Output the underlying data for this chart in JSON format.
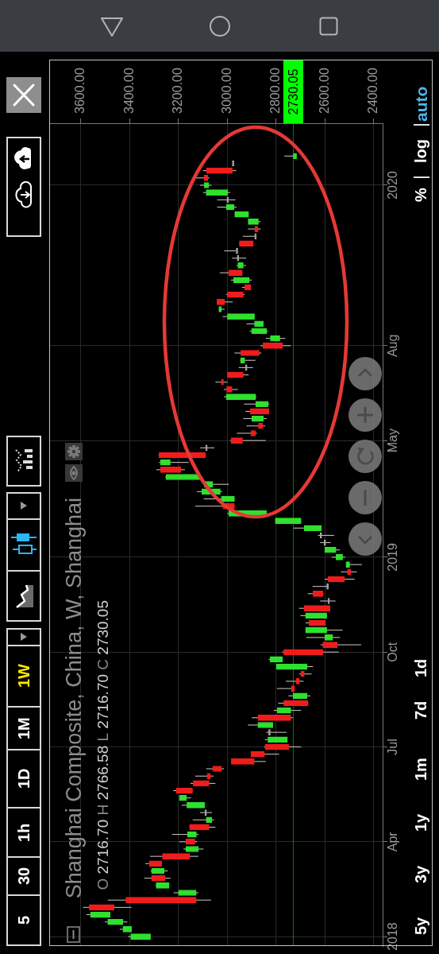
{
  "chart_data": {
    "type": "candlestick",
    "title": "Shanghai Composite, China, W, Shanghai",
    "subtitle": "O 2716.70 H 2766.58 L 2716.70 C 2730.05",
    "orientation": "horizontal",
    "categories": [
      null,
      null,
      null,
      null,
      "2020",
      null,
      null,
      null,
      null,
      null,
      null,
      null,
      null,
      null,
      null,
      null,
      null,
      null,
      null,
      null,
      null,
      null,
      null,
      null,
      null,
      null,
      "Aug",
      null,
      null,
      null,
      null,
      null,
      null,
      null,
      null,
      null,
      null,
      null,
      null,
      "May",
      null,
      null,
      null,
      null,
      null,
      null,
      null,
      null,
      null,
      null,
      null,
      null,
      null,
      null,
      null,
      "2019",
      null,
      null,
      null,
      null,
      null,
      null,
      null,
      null,
      null,
      null,
      null,
      null,
      "Oct",
      null,
      null,
      null,
      null,
      null,
      null,
      null,
      null,
      null,
      null,
      null,
      null,
      "Jul",
      null,
      null,
      null,
      null,
      null,
      null,
      null,
      null,
      null,
      null,
      null,
      null,
      "Apr",
      null,
      null,
      null,
      null,
      null,
      null,
      null,
      null,
      null,
      null,
      null,
      null,
      "2018"
    ],
    "ohlc": [
      [
        2716.7,
        2766.58,
        2716.7,
        2730.05
      ],
      [
        2980,
        2980,
        2980,
        2980
      ],
      [
        3086,
        3100,
        2964,
        2980
      ],
      [
        3095,
        3132,
        3074,
        3080
      ],
      [
        3076,
        3112,
        3065,
        3095
      ],
      [
        2999,
        3100,
        2989,
        3087
      ],
      [
        3002,
        3042,
        2967,
        3002
      ],
      [
        2973,
        3042,
        2963,
        3004
      ],
      [
        2913,
        2970,
        2913,
        2970
      ],
      [
        2873,
        2915,
        2864,
        2915
      ],
      [
        2888,
        2916,
        2864,
        2875
      ],
      [
        2888,
        2937,
        2881,
        2888
      ],
      [
        2951,
        2951,
        2894,
        2894
      ],
      [
        2964,
        3013,
        2964,
        2964
      ],
      [
        2960,
        2981,
        2923,
        2960
      ],
      [
        2935,
        2962,
        2924,
        2957
      ],
      [
        2994,
        3031,
        2939,
        2939
      ],
      [
        2910,
        2986,
        2900,
        2975
      ],
      [
        2929,
        2940,
        2904,
        2904
      ],
      [
        3000,
        3005,
        2929,
        2935
      ],
      [
        3043,
        3043,
        2978,
        3011
      ],
      [
        3024,
        3035,
        3011,
        3035
      ],
      [
        2889,
        3019,
        2889,
        3000
      ],
      [
        2853,
        2922,
        2853,
        2889
      ],
      [
        2839,
        2908,
        2835,
        2901
      ],
      [
        2785,
        2843,
        2763,
        2824
      ],
      [
        2854,
        2865,
        2740,
        2774
      ],
      [
        2945,
        2971,
        2861,
        2870
      ],
      [
        2929,
        2948,
        2885,
        2946
      ],
      [
        2926,
        2954,
        2895,
        2926
      ],
      [
        3000,
        3000,
        2913,
        2935
      ],
      [
        3025,
        3049,
        3000,
        3016
      ],
      [
        3003,
        3014,
        2957,
        2981
      ],
      [
        2884,
        3014,
        2881,
        3005
      ],
      [
        2833,
        2932,
        2828,
        2884
      ],
      [
        2906,
        2926,
        2830,
        2830
      ],
      [
        2853,
        2935,
        2839,
        2900
      ],
      [
        2873,
        2922,
        2845,
        2856
      ],
      [
        2904,
        2961,
        2879,
        2885
      ],
      [
        2985,
        2989,
        2843,
        2938
      ],
      [
        3089,
        3111,
        3053,
        3089
      ],
      [
        3280,
        3282,
        3089,
        3089
      ],
      [
        3234,
        3280,
        3158,
        3274
      ],
      [
        3274,
        3291,
        3174,
        3191
      ],
      [
        3114,
        3255,
        3114,
        3251
      ],
      [
        3060,
        3095,
        2994,
        3095
      ],
      [
        3029,
        3125,
        3022,
        3105
      ],
      [
        2971,
        3097,
        2971,
        3025
      ],
      [
        3019,
        3132,
        2971,
        2971
      ],
      [
        2839,
        3000,
        2839,
        2994
      ],
      [
        2698,
        2804,
        2698,
        2804
      ],
      [
        2615,
        2729,
        2615,
        2685
      ],
      [
        2620,
        2629,
        2563,
        2620
      ],
      [
        2604,
        2620,
        2577,
        2604
      ],
      [
        2555,
        2601,
        2539,
        2601
      ],
      [
        2528,
        2573,
        2517,
        2555
      ],
      [
        2499,
        2514,
        2449,
        2514
      ],
      [
        2508,
        2535,
        2470,
        2495
      ],
      [
        2588,
        2601,
        2479,
        2520
      ],
      [
        2593,
        2651,
        2585,
        2593
      ],
      [
        2649,
        2671,
        2606,
        2609
      ],
      [
        2588,
        2620,
        2557,
        2588
      ],
      [
        2685,
        2707,
        2579,
        2579
      ],
      [
        2593,
        2701,
        2593,
        2680
      ],
      [
        2666,
        2680,
        2598,
        2598
      ],
      [
        2593,
        2680,
        2528,
        2680
      ],
      [
        2569,
        2677,
        2539,
        2601
      ],
      [
        2609,
        2618,
        2452,
        2550
      ],
      [
        2769,
        2775,
        2544,
        2609
      ],
      [
        2774,
        2831,
        2774,
        2825
      ],
      [
        2674,
        2799,
        2649,
        2799
      ],
      [
        2699,
        2706,
        2655,
        2685
      ],
      [
        2718,
        2761,
        2688,
        2705
      ],
      [
        2738,
        2797,
        2725,
        2725
      ],
      [
        2674,
        2750,
        2660,
        2731
      ],
      [
        2769,
        2792,
        2669,
        2669
      ],
      [
        2740,
        2810,
        2698,
        2796
      ],
      [
        2875,
        2900,
        2732,
        2740
      ],
      [
        2814,
        2916,
        2814,
        2875
      ],
      [
        2831,
        2841,
        2758,
        2831
      ],
      [
        2754,
        2846,
        2754,
        2834
      ],
      [
        2846,
        2850,
        2698,
        2749
      ],
      [
        2904,
        2904,
        2788,
        2848
      ],
      [
        2984,
        2984,
        2843,
        2890
      ],
      [
        3060,
        3087,
        3014,
        3025
      ],
      [
        3083,
        3132,
        3057,
        3069
      ],
      [
        3140,
        3151,
        3049,
        3075
      ],
      [
        3210,
        3222,
        3143,
        3143
      ],
      [
        3168,
        3197,
        3149,
        3197
      ],
      [
        3093,
        3187,
        3093,
        3166
      ],
      [
        3092,
        3112,
        3063,
        3092
      ],
      [
        3064,
        3142,
        3054,
        3087
      ],
      [
        3155,
        3155,
        3049,
        3075
      ],
      [
        3127,
        3227,
        3118,
        3163
      ],
      [
        3170,
        3197,
        3124,
        3133
      ],
      [
        3119,
        3180,
        3098,
        3170
      ],
      [
        3266,
        3317,
        3119,
        3154
      ],
      [
        3320,
        3336,
        3269,
        3269
      ],
      [
        3259,
        3315,
        3244,
        3311
      ],
      [
        3311,
        3341,
        3233,
        3255
      ],
      [
        3239,
        3295,
        3239,
        3292
      ],
      [
        3128,
        3220,
        3119,
        3200
      ],
      [
        3416,
        3490,
        3067,
        3128
      ],
      [
        3566,
        3591,
        3393,
        3464
      ],
      [
        3480,
        3577,
        3480,
        3561
      ],
      [
        3428,
        3502,
        3410,
        3490
      ],
      [
        3393,
        3441,
        3393,
        3428
      ],
      [
        3315,
        3407,
        3315,
        3396
      ]
    ],
    "colors": [
      "#2fe02f",
      "#b4b4b4",
      "#f01c1c",
      "#f01c1c",
      "#2fe02f",
      "#2fe02f",
      "#b4b4b4",
      "#2fe02f",
      "#2fe02f",
      "#2fe02f",
      "#f01c1c",
      "#b4b4b4",
      "#f01c1c",
      "#b4b4b4",
      "#b4b4b4",
      "#2fe02f",
      "#f01c1c",
      "#2fe02f",
      "#f01c1c",
      "#f01c1c",
      "#f01c1c",
      "#2fe02f",
      "#2fe02f",
      "#2fe02f",
      "#2fe02f",
      "#2fe02f",
      "#f01c1c",
      "#f01c1c",
      "#2fe02f",
      "#b4b4b4",
      "#f01c1c",
      "#f01c1c",
      "#f01c1c",
      "#2fe02f",
      "#2fe02f",
      "#f01c1c",
      "#2fe02f",
      "#f01c1c",
      "#f01c1c",
      "#f01c1c",
      "#b4b4b4",
      "#f01c1c",
      "#2fe02f",
      "#f01c1c",
      "#2fe02f",
      "#2fe02f",
      "#2fe02f",
      "#2fe02f",
      "#f01c1c",
      "#2fe02f",
      "#2fe02f",
      "#2fe02f",
      "#b4b4b4",
      "#b4b4b4",
      "#2fe02f",
      "#2fe02f",
      "#2fe02f",
      "#f01c1c",
      "#f01c1c",
      "#b4b4b4",
      "#f01c1c",
      "#b4b4b4",
      "#f01c1c",
      "#2fe02f",
      "#f01c1c",
      "#2fe02f",
      "#2fe02f",
      "#f01c1c",
      "#f01c1c",
      "#2fe02f",
      "#2fe02f",
      "#f01c1c",
      "#f01c1c",
      "#f01c1c",
      "#2fe02f",
      "#f01c1c",
      "#2fe02f",
      "#f01c1c",
      "#2fe02f",
      "#b4b4b4",
      "#2fe02f",
      "#f01c1c",
      "#f01c1c",
      "#f01c1c",
      "#f01c1c",
      "#f01c1c",
      "#f01c1c",
      "#f01c1c",
      "#2fe02f",
      "#2fe02f",
      "#b4b4b4",
      "#2fe02f",
      "#f01c1c",
      "#2fe02f",
      "#f01c1c",
      "#2fe02f",
      "#f01c1c",
      "#f01c1c",
      "#2fe02f",
      "#f01c1c",
      "#2fe02f",
      "#2fe02f",
      "#f01c1c",
      "#f01c1c",
      "#2fe02f",
      "#2fe02f",
      "#2fe02f",
      "#2fe02f"
    ],
    "xlim": [
      3730,
      2364
    ],
    "xticks": [
      {
        "value": 3600,
        "label": "3600.00"
      },
      {
        "value": 3400,
        "label": "3400.00"
      },
      {
        "value": 3200,
        "label": "3200.00"
      },
      {
        "value": 3000,
        "label": "3000.00"
      },
      {
        "value": 2800,
        "label": "2800.00"
      },
      {
        "value": 2600,
        "label": "2600.00"
      },
      {
        "value": 2400,
        "label": "2400.00"
      }
    ],
    "grid": true,
    "ref_lines": [
      {
        "axis": "x",
        "value": 2730.05,
        "label": "2730.05",
        "color": "#00ff00"
      }
    ],
    "annotations": [
      "5",
      "30",
      "1h",
      "1D",
      "1M",
      "1W",
      "5y",
      "3y",
      "1y",
      "1m",
      "7d",
      "1d",
      "%",
      "log",
      "auto"
    ]
  }
}
